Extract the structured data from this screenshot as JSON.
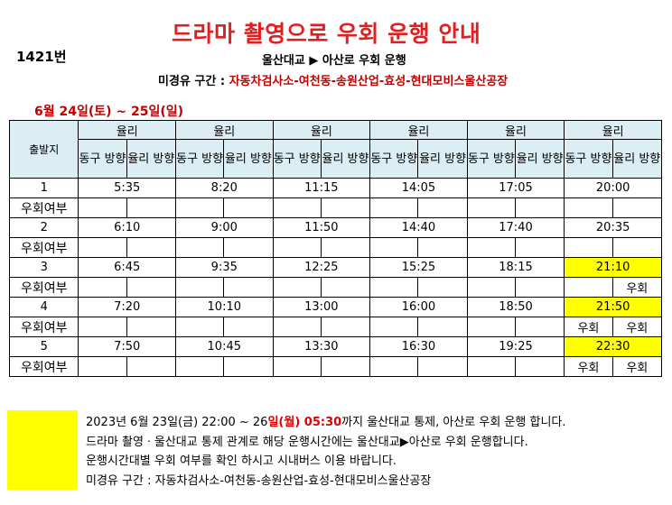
{
  "title": "드라마 촬영으로 우회 운행 안내",
  "route_no": "1421번",
  "subtitle": "울산대교 ▶ 아산로 우회 운행",
  "via_label": "미경유 구간 : ",
  "via_stops": "자동차검사소-여천동-송원산업-효성-현대모비스울산공장",
  "date_range": "6월 24일(토) ~ 25일(일)",
  "table": {
    "dep_header": "출발지",
    "group_header": "율리",
    "dir_a": "동구 방향",
    "dir_b": "율리 방향",
    "detour_label": "우회여부",
    "trips": [
      {
        "no": "1",
        "times": [
          "5:35",
          "8:20",
          "11:15",
          "14:05",
          "17:05",
          "20:00"
        ],
        "highlight": false,
        "detour": [
          "",
          "",
          "",
          "",
          "",
          "",
          "",
          "",
          "",
          "",
          "",
          ""
        ]
      },
      {
        "no": "2",
        "times": [
          "6:10",
          "9:00",
          "11:50",
          "14:40",
          "17:40",
          "20:35"
        ],
        "highlight": false,
        "detour": [
          "",
          "",
          "",
          "",
          "",
          "",
          "",
          "",
          "",
          "",
          "",
          ""
        ]
      },
      {
        "no": "3",
        "times": [
          "6:45",
          "9:35",
          "12:25",
          "15:25",
          "18:15",
          "21:10"
        ],
        "highlight": true,
        "detour": [
          "",
          "",
          "",
          "",
          "",
          "",
          "",
          "",
          "",
          "",
          "",
          "우회"
        ]
      },
      {
        "no": "4",
        "times": [
          "7:20",
          "10:10",
          "13:00",
          "16:00",
          "18:50",
          "21:50"
        ],
        "highlight": true,
        "detour": [
          "",
          "",
          "",
          "",
          "",
          "",
          "",
          "",
          "",
          "",
          "우회",
          "우회"
        ]
      },
      {
        "no": "5",
        "times": [
          "7:50",
          "10:45",
          "13:30",
          "16:30",
          "19:25",
          "22:30"
        ],
        "highlight": true,
        "detour": [
          "",
          "",
          "",
          "",
          "",
          "",
          "",
          "",
          "",
          "",
          "우회",
          "우회"
        ]
      }
    ]
  },
  "notes": {
    "line1_pre": "2023년 6월 23일(금) 22:00 ~ 26",
    "line1_red": "일(월) 05:30",
    "line1_post": "까지 울산대교 통제, 아산로 우회 운행 합니다.",
    "line2": "드라마 촬영ㆍ울산대교 통제 관계로 해당 운행시간에는 울산대교▶아산로 우회 운행합니다.",
    "line3": "운행시간대별 우회 여부를 확인 하시고 시내버스 이용 바랍니다.",
    "line4": "미경유 구간 : 자동차검사소-여천동-송원산업-효성-현대모비스울산공장"
  }
}
